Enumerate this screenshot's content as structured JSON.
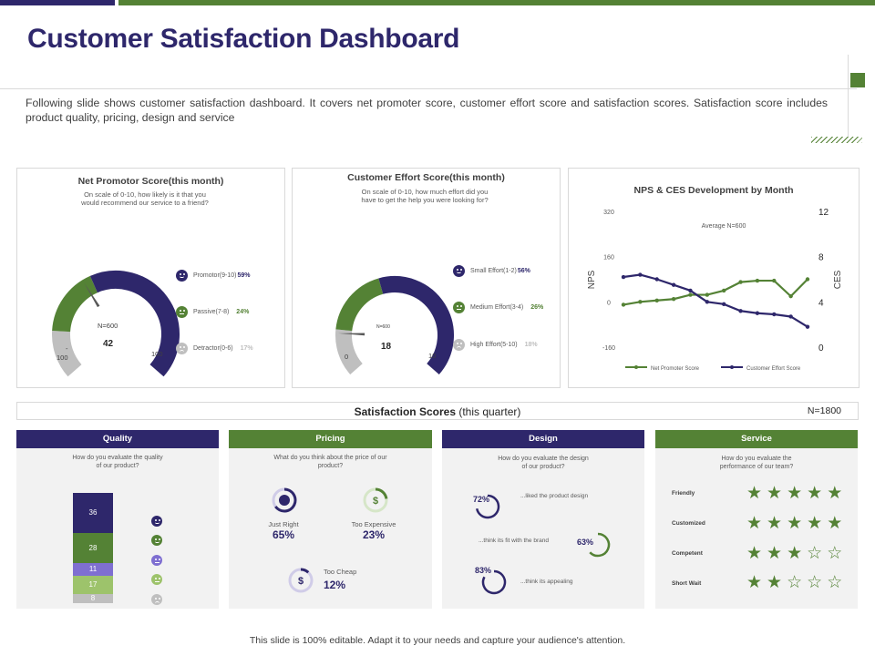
{
  "header": {
    "title": "Customer Satisfaction Dashboard",
    "intro": "Following slide shows customer satisfaction dashboard. It covers net promoter score, customer effort score and satisfaction scores. Satisfaction score includes product quality, pricing, design and service"
  },
  "colors": {
    "purple": "#2e276b",
    "green": "#548235",
    "grey": "#bfbfbf",
    "light_green": "#9dc36b",
    "mid_purple": "#7f6fd1"
  },
  "nps": {
    "title": "Net Promotor Score(this month)",
    "subtitle_line1": "On scale of 0-10, how likely is it that you",
    "subtitle_line2": "would recommend our service to a friend?",
    "n_label": "N=600",
    "value": "42",
    "min_label": "-\n100",
    "min_dash": "-",
    "min_num": "100",
    "max_label": "100",
    "legend": [
      {
        "label": "Promotor(9-10)",
        "pct": "59%",
        "color": "#2e276b",
        "icon": "smiley-icon"
      },
      {
        "label": "Passive(7-8)",
        "pct": "24%",
        "color": "#548235",
        "icon": "neutral-face-icon"
      },
      {
        "label": "Detractor(0-6)",
        "pct": "17%",
        "color": "#bfbfbf",
        "icon": "sad-face-icon"
      }
    ]
  },
  "ces": {
    "title": "Customer Effort Score(this month)",
    "subtitle_line1": "On scale of 0-10, how much effort did you",
    "subtitle_line2": "have to get the help you were looking for?",
    "n_label": "N=600",
    "value": "18",
    "min_label": "0",
    "max_label": "10",
    "legend": [
      {
        "label": "Small Effort(1-2)",
        "pct": "56%",
        "color": "#2e276b",
        "icon": "smiley-icon"
      },
      {
        "label": "Medium Effort(3-4)",
        "pct": "26%",
        "color": "#548235",
        "icon": "neutral-face-icon"
      },
      {
        "label": "High Effort(5-10)",
        "pct": "18%",
        "color": "#bfbfbf",
        "icon": "sad-face-icon"
      }
    ]
  },
  "chart_data": {
    "type": "line",
    "title": "NPS & CES Development by Month",
    "annotation": "Average N=600",
    "ylabel": "NPS",
    "y2label": "CES",
    "yticks": [
      "320",
      "160",
      "0",
      "-160"
    ],
    "y2ticks": [
      "12",
      "8",
      "4",
      "0"
    ],
    "ylim": [
      -160,
      320
    ],
    "y2lim": [
      0,
      12
    ],
    "x": [
      1,
      2,
      3,
      4,
      5,
      6,
      7,
      8,
      9,
      10,
      11,
      12
    ],
    "series": [
      {
        "name": "Net Promoter Score",
        "axis": "left",
        "color": "#548235",
        "values": [
          -10,
          0,
          5,
          10,
          25,
          25,
          40,
          70,
          75,
          75,
          20,
          80
        ]
      },
      {
        "name": "Customer Effort Score",
        "axis": "right",
        "color": "#2e276b",
        "values": [
          6.2,
          6.4,
          6.0,
          5.5,
          5.0,
          4.0,
          3.8,
          3.2,
          3.0,
          2.9,
          2.7,
          1.8
        ]
      }
    ],
    "legend_position": "bottom"
  },
  "satisfaction": {
    "title_bold": "Satisfaction Scores",
    "title_rest": " (this quarter)",
    "n_label": "N=1800"
  },
  "quality": {
    "head": "Quality",
    "question_line1": "How do you evaluate the quality",
    "question_line2": "of our product?",
    "segments": [
      {
        "value": 36,
        "color": "#2e276b",
        "label": "36"
      },
      {
        "value": 28,
        "color": "#548235",
        "label": "28"
      },
      {
        "value": 11,
        "color": "#7f6fd1",
        "label": "11"
      },
      {
        "value": 17,
        "color": "#9dc36b",
        "label": "17"
      },
      {
        "value": 8,
        "color": "#bfbfbf",
        "label": "8"
      }
    ]
  },
  "pricing": {
    "head": "Pricing",
    "question_line1": "What do you think about the price of our",
    "question_line2": "product?",
    "items": [
      {
        "label": "Just Right",
        "pct": "65%",
        "value": 65
      },
      {
        "label": "Too Expensive",
        "pct": "23%",
        "value": 23
      },
      {
        "label": "Too Cheap",
        "pct": "12%",
        "value": 12
      }
    ]
  },
  "design": {
    "head": "Design",
    "question_line1": "How do you evaluate the design",
    "question_line2": "of our product?",
    "items": [
      {
        "pct": "72%",
        "value": 72,
        "text": "...liked the product design"
      },
      {
        "pct": "63%",
        "value": 63,
        "text": "...think its fit with the brand"
      },
      {
        "pct": "83%",
        "value": 83,
        "text": "...think its appealing"
      }
    ]
  },
  "service": {
    "head": "Service",
    "question_line1": "How do you evaluate the",
    "question_line2": "performance of our team?",
    "items": [
      {
        "label": "Friendly",
        "stars": 5
      },
      {
        "label": "Customized",
        "stars": 5
      },
      {
        "label": "Competent",
        "stars": 3
      },
      {
        "label": "Short Wait",
        "stars": 2
      }
    ],
    "max_stars": 5
  },
  "footer": "This slide is 100% editable. Adapt it to your needs and capture your audience's attention."
}
